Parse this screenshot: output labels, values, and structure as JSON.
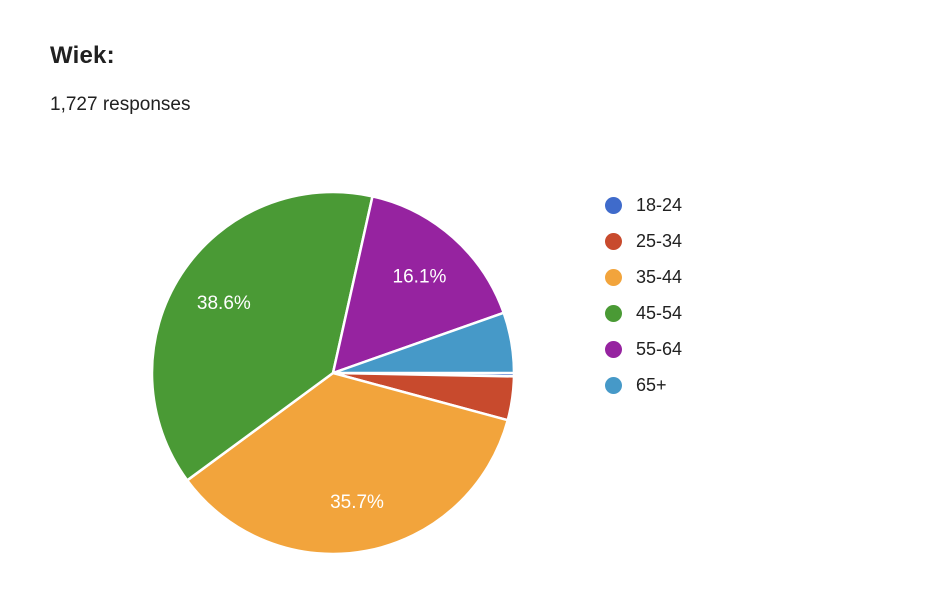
{
  "header": {
    "title": "Wiek:",
    "subtitle": "1,727 responses"
  },
  "chart_data": {
    "type": "pie",
    "title": "Wiek:",
    "subtitle": "1,727 responses",
    "categories": [
      "18-24",
      "25-34",
      "35-44",
      "45-54",
      "55-64",
      "65+"
    ],
    "values": [
      0.3,
      3.9,
      35.7,
      38.6,
      16.1,
      5.4
    ],
    "slice_labels": [
      "",
      "",
      "35.7%",
      "38.6%",
      "16.1%",
      ""
    ],
    "colors": [
      "#3F6BCB",
      "#C84A2D",
      "#F2A43C",
      "#4A9A35",
      "#9623A0",
      "#4699C8"
    ],
    "start_angle_deg": 0,
    "direction": "clockwise",
    "label_color": "#ffffff",
    "label_radius_fraction": 0.72,
    "legend_position": "right",
    "background": "#ffffff"
  }
}
